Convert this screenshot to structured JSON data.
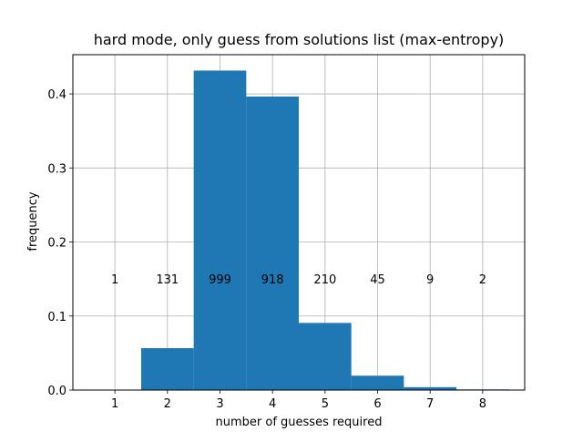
{
  "chart_data": {
    "type": "bar",
    "title": "hard mode, only guess from solutions list (max-entropy)",
    "xlabel": "number of guesses required",
    "ylabel": "frequency",
    "categories": [
      "1",
      "2",
      "3",
      "4",
      "5",
      "6",
      "7",
      "8"
    ],
    "values": [
      0.0004,
      0.0566,
      0.4315,
      0.3965,
      0.0907,
      0.0194,
      0.0039,
      0.0009
    ],
    "counts": [
      "1",
      "131",
      "999",
      "918",
      "210",
      "45",
      "9",
      "2"
    ],
    "xlim": [
      0.2,
      8.8
    ],
    "ylim": [
      0,
      0.453
    ],
    "yticks": [
      "0.0",
      "0.1",
      "0.2",
      "0.3",
      "0.4"
    ],
    "ytick_values": [
      0.0,
      0.1,
      0.2,
      0.3,
      0.4
    ],
    "count_label_y": 0.15,
    "grid": true,
    "bar_color": "#1f77b4"
  }
}
